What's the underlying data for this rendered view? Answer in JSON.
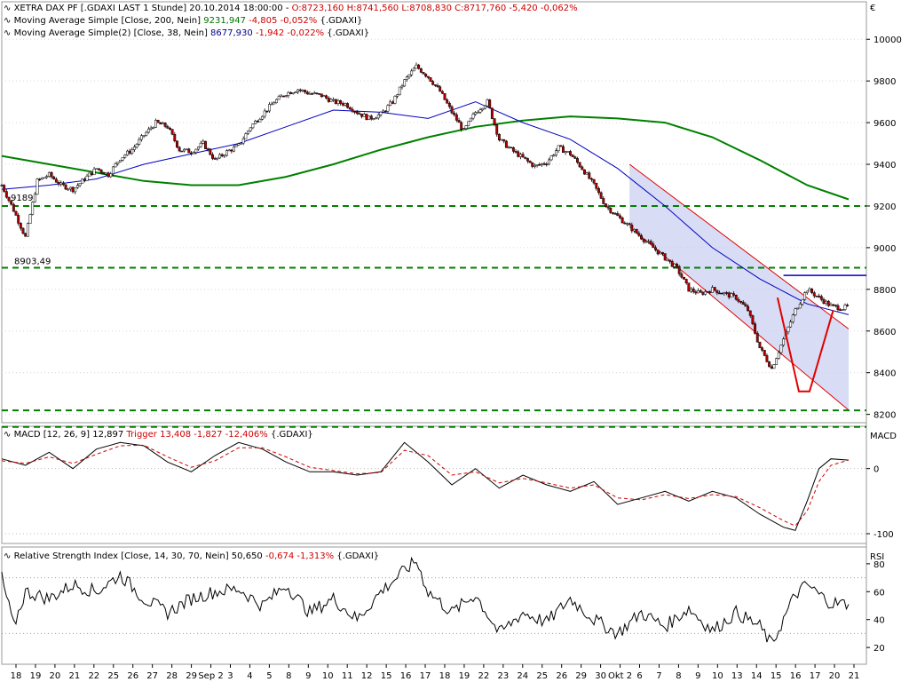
{
  "header": {
    "title_line": "XETRA DAX PF [.GDAXI LAST 1 Stunde] 20.10.2014 18:00:00 -",
    "ohlc": "O:8723,160 H:8741,560 L:8708,830 C:8717,760 -5,420 -0,062%",
    "ma200_label": "Moving Average Simple [Close, 200, Nein]",
    "ma200_value": "9231,947",
    "ma200_change": "-4,805 -0,052%",
    "ma200_suffix": "{.GDAXI}",
    "ma38_label": "Moving Average Simple(2) [Close, 38, Nein]",
    "ma38_value": "8677,930",
    "ma38_change": "-1,942 -0,022%",
    "ma38_suffix": "{.GDAXI}",
    "currency": "€"
  },
  "macd_legend": {
    "label": "MACD [12, 26, 9] 12,897",
    "trigger": "Trigger 13,408 -1,827 -12,406%",
    "suffix": "{.GDAXI}",
    "axis_title": "MACD"
  },
  "rsi_legend": {
    "label": "Relative Strength Index [Close, 14, 30, 70, Nein] 50,650",
    "change": "-0,674 -1,313%",
    "suffix": "{.GDAXI}",
    "axis_title": "RSI"
  },
  "chart_data": [
    {
      "type": "candlestick",
      "title": "XETRA DAX PF [.GDAXI LAST 1 Stunde]",
      "ylabel": "€",
      "ylim": [
        8160,
        10180
      ],
      "y_ticks": [
        8200,
        8400,
        8600,
        8800,
        9000,
        9200,
        9400,
        9600,
        9800,
        10000
      ],
      "x_tick_labels": [
        "18",
        "19",
        "20",
        "21",
        "22",
        "25",
        "26",
        "27",
        "28",
        "29",
        "Sep 2",
        "3",
        "4",
        "5",
        "8",
        "9",
        "10",
        "11",
        "12",
        "15",
        "16",
        "17",
        "18",
        "19",
        "22",
        "23",
        "24",
        "25",
        "26",
        "29",
        "30",
        "Okt 2",
        "6",
        "7",
        "8",
        "9",
        "10",
        "13",
        "14",
        "15",
        "16",
        "17",
        "20",
        "21"
      ],
      "grid": "dotted",
      "close_path": [
        [
          0,
          9300
        ],
        [
          1,
          9180
        ],
        [
          2,
          9050
        ],
        [
          3,
          9320
        ],
        [
          4,
          9350
        ],
        [
          5,
          9300
        ],
        [
          6,
          9280
        ],
        [
          7,
          9330
        ],
        [
          8,
          9380
        ],
        [
          9,
          9350
        ],
        [
          10,
          9430
        ],
        [
          11,
          9470
        ],
        [
          12,
          9540
        ],
        [
          13,
          9600
        ],
        [
          14,
          9580
        ],
        [
          15,
          9470
        ],
        [
          16,
          9460
        ],
        [
          17,
          9500
        ],
        [
          18,
          9420
        ],
        [
          19,
          9460
        ],
        [
          20,
          9490
        ],
        [
          21,
          9580
        ],
        [
          22,
          9640
        ],
        [
          23,
          9700
        ],
        [
          24,
          9740
        ],
        [
          25,
          9760
        ],
        [
          26,
          9740
        ],
        [
          27,
          9730
        ],
        [
          28,
          9700
        ],
        [
          29,
          9690
        ],
        [
          30,
          9650
        ],
        [
          31,
          9620
        ],
        [
          32,
          9640
        ],
        [
          33,
          9700
        ],
        [
          34,
          9800
        ],
        [
          35,
          9870
        ],
        [
          36,
          9820
        ],
        [
          37,
          9750
        ],
        [
          38,
          9650
        ],
        [
          39,
          9560
        ],
        [
          40,
          9650
        ],
        [
          41,
          9700
        ],
        [
          42,
          9520
        ],
        [
          43,
          9470
        ],
        [
          44,
          9430
        ],
        [
          45,
          9390
        ],
        [
          46,
          9410
        ],
        [
          47,
          9480
        ],
        [
          48,
          9450
        ],
        [
          49,
          9380
        ],
        [
          50,
          9300
        ],
        [
          51,
          9200
        ],
        [
          52,
          9150
        ],
        [
          53,
          9100
        ],
        [
          54,
          9050
        ],
        [
          55,
          9000
        ],
        [
          56,
          8950
        ],
        [
          57,
          8900
        ],
        [
          58,
          8800
        ],
        [
          59,
          8780
        ],
        [
          60,
          8800
        ],
        [
          61,
          8780
        ],
        [
          62,
          8760
        ],
        [
          63,
          8700
        ],
        [
          64,
          8520
        ],
        [
          65,
          8420
        ],
        [
          66,
          8560
        ],
        [
          67,
          8700
        ],
        [
          68,
          8800
        ],
        [
          69,
          8760
        ],
        [
          70,
          8720
        ],
        [
          71,
          8710
        ],
        [
          71.5,
          8718
        ]
      ],
      "series": [
        {
          "name": "Moving Average Simple [Close, 200, Nein]",
          "color": "#008000",
          "points": [
            [
              0,
              9440
            ],
            [
              4,
              9400
            ],
            [
              8,
              9360
            ],
            [
              12,
              9320
            ],
            [
              16,
              9300
            ],
            [
              20,
              9300
            ],
            [
              24,
              9340
            ],
            [
              28,
              9400
            ],
            [
              32,
              9470
            ],
            [
              36,
              9530
            ],
            [
              40,
              9580
            ],
            [
              44,
              9610
            ],
            [
              48,
              9630
            ],
            [
              52,
              9620
            ],
            [
              56,
              9600
            ],
            [
              60,
              9530
            ],
            [
              64,
              9420
            ],
            [
              68,
              9300
            ],
            [
              71.5,
              9232
            ]
          ]
        },
        {
          "name": "Moving Average Simple(2) [Close, 38, Nein]",
          "color": "#0000c0",
          "points": [
            [
              0,
              9280
            ],
            [
              4,
              9300
            ],
            [
              8,
              9330
            ],
            [
              12,
              9400
            ],
            [
              16,
              9450
            ],
            [
              20,
              9500
            ],
            [
              24,
              9580
            ],
            [
              28,
              9660
            ],
            [
              32,
              9650
            ],
            [
              36,
              9620
            ],
            [
              40,
              9700
            ],
            [
              44,
              9600
            ],
            [
              48,
              9520
            ],
            [
              52,
              9380
            ],
            [
              56,
              9200
            ],
            [
              60,
              9000
            ],
            [
              64,
              8850
            ],
            [
              68,
              8730
            ],
            [
              71.5,
              8678
            ]
          ]
        }
      ],
      "horizontal_lines": [
        {
          "value": 9200,
          "color": "#008000",
          "style": "dashed"
        },
        {
          "value": 8903.49,
          "color": "#008000",
          "style": "dashed",
          "label": "8903,49"
        },
        {
          "value": 8219,
          "color": "#008000",
          "style": "dashed"
        },
        {
          "value": 8140,
          "color": "#008000",
          "style": "dashed"
        },
        {
          "value": 8867,
          "color": "#0000c0",
          "style": "solid",
          "x_from": 66
        }
      ],
      "annotations": [
        {
          "kind": "text",
          "label": "9189",
          "color": "#008000"
        },
        {
          "kind": "channel",
          "color": "#e00000",
          "fill": "#c8cdf0",
          "upper": [
            [
              53,
              9400
            ],
            [
              71.5,
              8610
            ]
          ],
          "lower": [
            [
              53,
              9100
            ],
            [
              71.5,
              8220
            ]
          ]
        },
        {
          "kind": "v-pattern",
          "color": "#e00000",
          "points": [
            [
              65.5,
              8760
            ],
            [
              67.3,
              8310
            ],
            [
              68.2,
              8310
            ],
            [
              70.2,
              8700
            ]
          ]
        }
      ]
    },
    {
      "type": "line",
      "title": "MACD [12, 26, 9]",
      "ylim": [
        -115,
        65
      ],
      "y_ticks": [
        -100,
        0
      ],
      "series": [
        {
          "name": "MACD",
          "color": "#000000",
          "points": [
            [
              0,
              15
            ],
            [
              2,
              5
            ],
            [
              4,
              25
            ],
            [
              6,
              0
            ],
            [
              8,
              30
            ],
            [
              10,
              40
            ],
            [
              12,
              35
            ],
            [
              14,
              10
            ],
            [
              16,
              -5
            ],
            [
              18,
              20
            ],
            [
              20,
              40
            ],
            [
              22,
              30
            ],
            [
              24,
              10
            ],
            [
              26,
              -5
            ],
            [
              28,
              -5
            ],
            [
              30,
              -10
            ],
            [
              32,
              -5
            ],
            [
              34,
              40
            ],
            [
              36,
              10
            ],
            [
              38,
              -25
            ],
            [
              40,
              0
            ],
            [
              42,
              -30
            ],
            [
              44,
              -10
            ],
            [
              46,
              -25
            ],
            [
              48,
              -35
            ],
            [
              50,
              -20
            ],
            [
              52,
              -55
            ],
            [
              54,
              -45
            ],
            [
              56,
              -35
            ],
            [
              58,
              -50
            ],
            [
              60,
              -35
            ],
            [
              62,
              -45
            ],
            [
              64,
              -70
            ],
            [
              66,
              -90
            ],
            [
              67,
              -95
            ],
            [
              68,
              -50
            ],
            [
              69,
              0
            ],
            [
              70,
              15
            ],
            [
              71.5,
              13
            ]
          ]
        },
        {
          "name": "Trigger",
          "color": "#d00000",
          "style": "dashed",
          "points": [
            [
              0,
              12
            ],
            [
              2,
              8
            ],
            [
              4,
              18
            ],
            [
              6,
              8
            ],
            [
              8,
              22
            ],
            [
              10,
              35
            ],
            [
              12,
              36
            ],
            [
              14,
              18
            ],
            [
              16,
              2
            ],
            [
              18,
              12
            ],
            [
              20,
              32
            ],
            [
              22,
              32
            ],
            [
              24,
              18
            ],
            [
              26,
              2
            ],
            [
              28,
              -3
            ],
            [
              30,
              -8
            ],
            [
              32,
              -6
            ],
            [
              34,
              28
            ],
            [
              36,
              20
            ],
            [
              38,
              -10
            ],
            [
              40,
              -5
            ],
            [
              42,
              -22
            ],
            [
              44,
              -15
            ],
            [
              46,
              -22
            ],
            [
              48,
              -30
            ],
            [
              50,
              -25
            ],
            [
              52,
              -45
            ],
            [
              54,
              -48
            ],
            [
              56,
              -40
            ],
            [
              58,
              -46
            ],
            [
              60,
              -40
            ],
            [
              62,
              -43
            ],
            [
              64,
              -60
            ],
            [
              66,
              -80
            ],
            [
              67,
              -88
            ],
            [
              68,
              -65
            ],
            [
              69,
              -20
            ],
            [
              70,
              5
            ],
            [
              71.5,
              13
            ]
          ]
        }
      ]
    },
    {
      "type": "line",
      "title": "Relative Strength Index [Close, 14, 30, 70, Nein]",
      "ylim": [
        8,
        92
      ],
      "y_ticks": [
        20,
        40,
        60,
        80
      ],
      "reference_lines": [
        30,
        70
      ],
      "series": [
        {
          "name": "RSI",
          "color": "#000000",
          "points": [
            [
              0,
              70
            ],
            [
              1,
              35
            ],
            [
              2,
              60
            ],
            [
              4,
              55
            ],
            [
              6,
              65
            ],
            [
              8,
              60
            ],
            [
              10,
              72
            ],
            [
              12,
              55
            ],
            [
              14,
              45
            ],
            [
              16,
              55
            ],
            [
              18,
              60
            ],
            [
              20,
              62
            ],
            [
              22,
              50
            ],
            [
              24,
              65
            ],
            [
              26,
              45
            ],
            [
              28,
              55
            ],
            [
              30,
              40
            ],
            [
              32,
              60
            ],
            [
              34,
              75
            ],
            [
              35,
              82
            ],
            [
              36,
              60
            ],
            [
              38,
              45
            ],
            [
              40,
              58
            ],
            [
              42,
              30
            ],
            [
              44,
              45
            ],
            [
              46,
              38
            ],
            [
              48,
              55
            ],
            [
              50,
              40
            ],
            [
              52,
              30
            ],
            [
              54,
              45
            ],
            [
              56,
              35
            ],
            [
              58,
              48
            ],
            [
              60,
              32
            ],
            [
              62,
              45
            ],
            [
              64,
              35
            ],
            [
              65,
              22
            ],
            [
              66,
              40
            ],
            [
              67,
              58
            ],
            [
              68,
              65
            ],
            [
              69,
              58
            ],
            [
              70,
              52
            ],
            [
              71.5,
              51
            ]
          ]
        }
      ]
    }
  ]
}
